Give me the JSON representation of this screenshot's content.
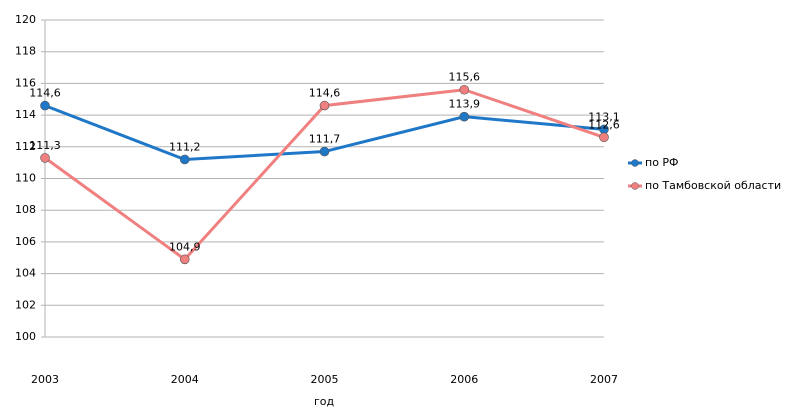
{
  "chart_data": {
    "type": "line",
    "x_label": "год",
    "categories": [
      "2003",
      "2004",
      "2005",
      "2006",
      "2007"
    ],
    "series": [
      {
        "name": "по РФ",
        "color": "#1f77c8",
        "values": [
          114.6,
          111.2,
          111.7,
          113.9,
          113.1
        ],
        "value_labels": [
          "114,6",
          "111,2",
          "111,7",
          "113,9",
          "113,1"
        ]
      },
      {
        "name": "по Тамбовской области",
        "color": "#f08080",
        "values": [
          111.3,
          104.9,
          114.6,
          115.6,
          112.6
        ],
        "value_labels": [
          "111,3",
          "104,9",
          "114,6",
          "115,6",
          "112,6"
        ]
      }
    ],
    "ylim": [
      100,
      120
    ],
    "yticks": [
      100,
      102,
      104,
      106,
      108,
      110,
      112,
      114,
      116,
      118,
      120
    ],
    "grid": true,
    "legend": "right"
  }
}
